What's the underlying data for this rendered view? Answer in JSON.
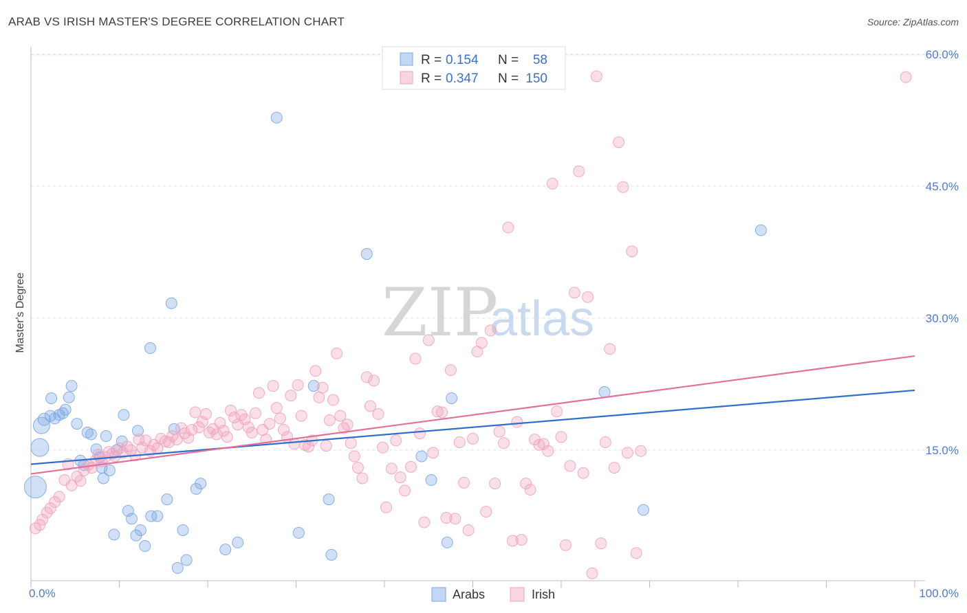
{
  "header": {
    "title": "ARAB VS IRISH MASTER'S DEGREE CORRELATION CHART",
    "source": "Source: ZipAtlas.com"
  },
  "watermark": {
    "zip": "ZIP",
    "atlas": "atlas"
  },
  "legend": {
    "r_label": "R =",
    "n_label": "N =",
    "entries": [
      {
        "r": "0.154",
        "n": "58",
        "color": "#7aa7e6"
      },
      {
        "r": "0.347",
        "n": "150",
        "color": "#f0a3bc"
      }
    ]
  },
  "bottom_legend": [
    {
      "name": "Arabs",
      "color": "#7aa7e6"
    },
    {
      "name": "Irish",
      "color": "#f0a3bc"
    }
  ],
  "chart_data": {
    "type": "scatter",
    "ylabel": "Master's Degree",
    "xlim": [
      0,
      100
    ],
    "ylim": [
      0,
      62
    ],
    "y_ticks": [
      {
        "value": 15,
        "label": "15.0%"
      },
      {
        "value": 30,
        "label": "30.0%"
      },
      {
        "value": 45,
        "label": "45.0%"
      },
      {
        "value": 60,
        "label": "60.0%"
      }
    ],
    "x_ticks": [
      {
        "value": 0,
        "label": "0.0%"
      },
      {
        "value": 100,
        "label": "100.0%"
      }
    ],
    "grid": true,
    "series": [
      {
        "name": "Arabs",
        "color": "#7aa7e6",
        "trend": {
          "x": [
            0,
            100
          ],
          "y": [
            13.4,
            21.8
          ],
          "color": "#2f6fcc"
        },
        "points": [
          [
            0.5,
            10.8,
            16
          ],
          [
            1,
            15.3,
            13
          ],
          [
            1.2,
            17.8,
            12
          ],
          [
            1.5,
            18.5,
            9
          ],
          [
            2.2,
            18.9,
            8
          ],
          [
            2.3,
            20.9,
            8
          ],
          [
            2.7,
            18.6,
            8
          ],
          [
            3.2,
            19.0,
            8
          ],
          [
            3.6,
            19.2,
            8
          ],
          [
            3.9,
            19.6,
            8
          ],
          [
            4.3,
            21.0,
            8
          ],
          [
            4.6,
            22.3,
            8
          ],
          [
            5.2,
            18.0,
            8
          ],
          [
            5.6,
            13.8,
            8
          ],
          [
            6.0,
            13.3,
            8
          ],
          [
            6.4,
            17.0,
            8
          ],
          [
            6.8,
            16.8,
            8
          ],
          [
            7.4,
            15.1,
            8
          ],
          [
            7.8,
            14.2,
            8
          ],
          [
            8.0,
            13.0,
            8
          ],
          [
            8.2,
            11.8,
            8
          ],
          [
            8.5,
            16.6,
            8
          ],
          [
            8.9,
            12.7,
            8
          ],
          [
            9.4,
            5.4,
            8
          ],
          [
            9.7,
            15.0,
            8
          ],
          [
            10.3,
            16.0,
            8
          ],
          [
            10.5,
            19.0,
            8
          ],
          [
            11.0,
            8.1,
            8
          ],
          [
            11.4,
            7.2,
            8
          ],
          [
            11.9,
            5.3,
            8
          ],
          [
            12.1,
            17.2,
            8
          ],
          [
            12.4,
            5.9,
            8
          ],
          [
            12.9,
            4.1,
            8
          ],
          [
            13.5,
            26.6,
            8
          ],
          [
            13.6,
            7.5,
            8
          ],
          [
            14.3,
            7.5,
            8
          ],
          [
            15.4,
            9.4,
            8
          ],
          [
            15.9,
            31.7,
            8
          ],
          [
            16.2,
            17.4,
            8
          ],
          [
            16.6,
            1.6,
            8
          ],
          [
            17.2,
            5.9,
            8
          ],
          [
            17.6,
            2.5,
            8
          ],
          [
            18.7,
            10.6,
            8
          ],
          [
            19.2,
            11.2,
            8
          ],
          [
            22.0,
            3.7,
            8
          ],
          [
            23.4,
            4.5,
            8
          ],
          [
            27.8,
            52.8,
            8
          ],
          [
            30.3,
            5.6,
            8
          ],
          [
            32.0,
            22.3,
            8
          ],
          [
            33.7,
            9.4,
            8
          ],
          [
            34.0,
            3.1,
            8
          ],
          [
            38.0,
            37.3,
            8
          ],
          [
            44.2,
            14.3,
            8
          ],
          [
            45.3,
            11.6,
            8
          ],
          [
            47.1,
            4.5,
            8
          ],
          [
            47.6,
            20.9,
            8
          ],
          [
            64.9,
            21.6,
            8
          ],
          [
            69.3,
            8.2,
            8
          ],
          [
            82.6,
            40.0,
            8
          ]
        ]
      },
      {
        "name": "Irish",
        "color": "#f0a3bc",
        "trend": {
          "x": [
            0,
            100
          ],
          "y": [
            12.3,
            25.7
          ],
          "color": "#e2709a"
        },
        "points": [
          [
            0.5,
            6.1,
            8
          ],
          [
            1.0,
            6.5,
            8
          ],
          [
            1.3,
            7.1,
            8
          ],
          [
            1.8,
            7.9,
            8
          ],
          [
            2.2,
            8.4,
            8
          ],
          [
            2.7,
            9.1,
            8
          ],
          [
            3.2,
            9.7,
            8
          ],
          [
            3.8,
            11.6,
            8
          ],
          [
            4.2,
            13.4,
            8
          ],
          [
            4.6,
            11.0,
            8
          ],
          [
            5.2,
            12.0,
            8
          ],
          [
            5.6,
            11.5,
            8
          ],
          [
            6.0,
            12.7,
            8
          ],
          [
            6.5,
            13.3,
            8
          ],
          [
            6.9,
            13.0,
            8
          ],
          [
            7.3,
            13.8,
            8
          ],
          [
            7.6,
            14.5,
            8
          ],
          [
            8.0,
            13.7,
            8
          ],
          [
            8.4,
            14.2,
            8
          ],
          [
            8.8,
            14.8,
            8
          ],
          [
            9.2,
            14.6,
            8
          ],
          [
            9.5,
            14.3,
            8
          ],
          [
            10.0,
            15.2,
            8
          ],
          [
            10.4,
            14.7,
            8
          ],
          [
            10.9,
            15.4,
            8
          ],
          [
            11.3,
            15.0,
            8
          ],
          [
            11.8,
            14.4,
            8
          ],
          [
            12.2,
            16.2,
            8
          ],
          [
            12.6,
            15.3,
            8
          ],
          [
            13.0,
            16.1,
            8
          ],
          [
            13.5,
            14.9,
            8
          ],
          [
            13.9,
            15.6,
            8
          ],
          [
            14.3,
            15.2,
            8
          ],
          [
            14.7,
            16.3,
            8
          ],
          [
            15.2,
            16.0,
            8
          ],
          [
            15.6,
            15.9,
            8
          ],
          [
            16.0,
            16.6,
            8
          ],
          [
            16.5,
            16.2,
            8
          ],
          [
            17.0,
            17.5,
            8
          ],
          [
            17.4,
            16.9,
            8
          ],
          [
            17.8,
            16.4,
            8
          ],
          [
            18.2,
            17.3,
            8
          ],
          [
            18.6,
            19.3,
            8
          ],
          [
            19.0,
            17.6,
            8
          ],
          [
            19.4,
            18.2,
            8
          ],
          [
            19.8,
            19.1,
            8
          ],
          [
            20.2,
            17.0,
            8
          ],
          [
            20.6,
            17.4,
            8
          ],
          [
            21.0,
            16.8,
            8
          ],
          [
            21.4,
            18.1,
            8
          ],
          [
            21.8,
            17.2,
            8
          ],
          [
            22.2,
            16.5,
            8
          ],
          [
            22.6,
            19.5,
            8
          ],
          [
            23.0,
            18.7,
            8
          ],
          [
            23.4,
            17.9,
            8
          ],
          [
            23.8,
            19.0,
            8
          ],
          [
            24.2,
            18.5,
            8
          ],
          [
            24.6,
            17.6,
            8
          ],
          [
            25.0,
            17.0,
            8
          ],
          [
            25.4,
            19.2,
            8
          ],
          [
            25.8,
            21.5,
            8
          ],
          [
            26.2,
            17.3,
            8
          ],
          [
            26.6,
            16.2,
            8
          ],
          [
            27.0,
            18.0,
            8
          ],
          [
            27.4,
            22.3,
            8
          ],
          [
            27.8,
            19.8,
            8
          ],
          [
            28.2,
            18.6,
            8
          ],
          [
            28.6,
            17.3,
            8
          ],
          [
            29.0,
            16.5,
            8
          ],
          [
            29.4,
            21.2,
            8
          ],
          [
            29.8,
            15.7,
            8
          ],
          [
            30.2,
            22.4,
            8
          ],
          [
            30.6,
            18.9,
            8
          ],
          [
            31.0,
            15.6,
            8
          ],
          [
            31.4,
            15.4,
            8
          ],
          [
            31.8,
            16.1,
            8
          ],
          [
            32.2,
            24.0,
            8
          ],
          [
            32.6,
            21.0,
            8
          ],
          [
            33.0,
            22.1,
            8
          ],
          [
            33.4,
            15.5,
            8
          ],
          [
            33.8,
            18.4,
            8
          ],
          [
            34.2,
            20.7,
            8
          ],
          [
            34.6,
            26.0,
            8
          ],
          [
            35.0,
            18.9,
            8
          ],
          [
            35.4,
            17.5,
            8
          ],
          [
            35.8,
            17.9,
            8
          ],
          [
            36.2,
            15.8,
            8
          ],
          [
            36.6,
            14.3,
            8
          ],
          [
            37.0,
            13.0,
            8
          ],
          [
            37.5,
            11.8,
            8
          ],
          [
            38.0,
            23.3,
            8
          ],
          [
            38.4,
            20.0,
            8
          ],
          [
            38.8,
            22.9,
            8
          ],
          [
            39.3,
            19.1,
            8
          ],
          [
            39.8,
            15.3,
            8
          ],
          [
            40.2,
            8.5,
            8
          ],
          [
            40.8,
            12.9,
            8
          ],
          [
            41.3,
            16.1,
            8
          ],
          [
            41.8,
            11.9,
            8
          ],
          [
            42.3,
            10.4,
            8
          ],
          [
            43.0,
            13.1,
            8
          ],
          [
            43.5,
            25.4,
            8
          ],
          [
            44.0,
            16.9,
            8
          ],
          [
            44.5,
            6.8,
            8
          ],
          [
            45.0,
            27.5,
            8
          ],
          [
            45.5,
            14.7,
            8
          ],
          [
            46.0,
            19.4,
            8
          ],
          [
            46.5,
            19.3,
            8
          ],
          [
            47.0,
            7.3,
            8
          ],
          [
            47.5,
            24.1,
            8
          ],
          [
            48.0,
            7.2,
            8
          ],
          [
            48.5,
            15.9,
            8
          ],
          [
            49.0,
            11.3,
            8
          ],
          [
            49.5,
            5.9,
            8
          ],
          [
            50.0,
            16.3,
            8
          ],
          [
            50.5,
            26.2,
            8
          ],
          [
            51.0,
            27.2,
            8
          ],
          [
            51.5,
            8.0,
            8
          ],
          [
            52.0,
            28.6,
            8
          ],
          [
            52.5,
            11.2,
            8
          ],
          [
            53.0,
            17.1,
            8
          ],
          [
            53.5,
            15.8,
            8
          ],
          [
            54.0,
            40.3,
            8
          ],
          [
            54.5,
            4.7,
            8
          ],
          [
            55.0,
            18.2,
            8
          ],
          [
            55.5,
            4.8,
            8
          ],
          [
            56.0,
            11.2,
            8
          ],
          [
            56.5,
            10.5,
            8
          ],
          [
            57.0,
            16.2,
            8
          ],
          [
            57.5,
            15.6,
            8
          ],
          [
            58.0,
            15.7,
            8
          ],
          [
            58.5,
            14.9,
            8
          ],
          [
            59.0,
            45.3,
            8
          ],
          [
            59.5,
            19.4,
            8
          ],
          [
            60.0,
            16.5,
            8
          ],
          [
            60.5,
            4.2,
            8
          ],
          [
            61.0,
            13.2,
            8
          ],
          [
            61.5,
            32.9,
            8
          ],
          [
            62.0,
            46.7,
            8
          ],
          [
            62.5,
            12.4,
            8
          ],
          [
            63.0,
            32.4,
            8
          ],
          [
            63.5,
            1.0,
            8
          ],
          [
            64.0,
            57.5,
            8
          ],
          [
            64.5,
            4.4,
            8
          ],
          [
            65.0,
            15.9,
            8
          ],
          [
            65.5,
            26.5,
            8
          ],
          [
            66.0,
            13.0,
            8
          ],
          [
            66.5,
            50.0,
            8
          ],
          [
            67.0,
            44.9,
            8
          ],
          [
            67.5,
            14.7,
            8
          ],
          [
            68.0,
            37.6,
            8
          ],
          [
            68.5,
            3.3,
            8
          ],
          [
            69.0,
            14.9,
            8
          ],
          [
            99.0,
            57.4,
            8
          ]
        ]
      }
    ]
  }
}
